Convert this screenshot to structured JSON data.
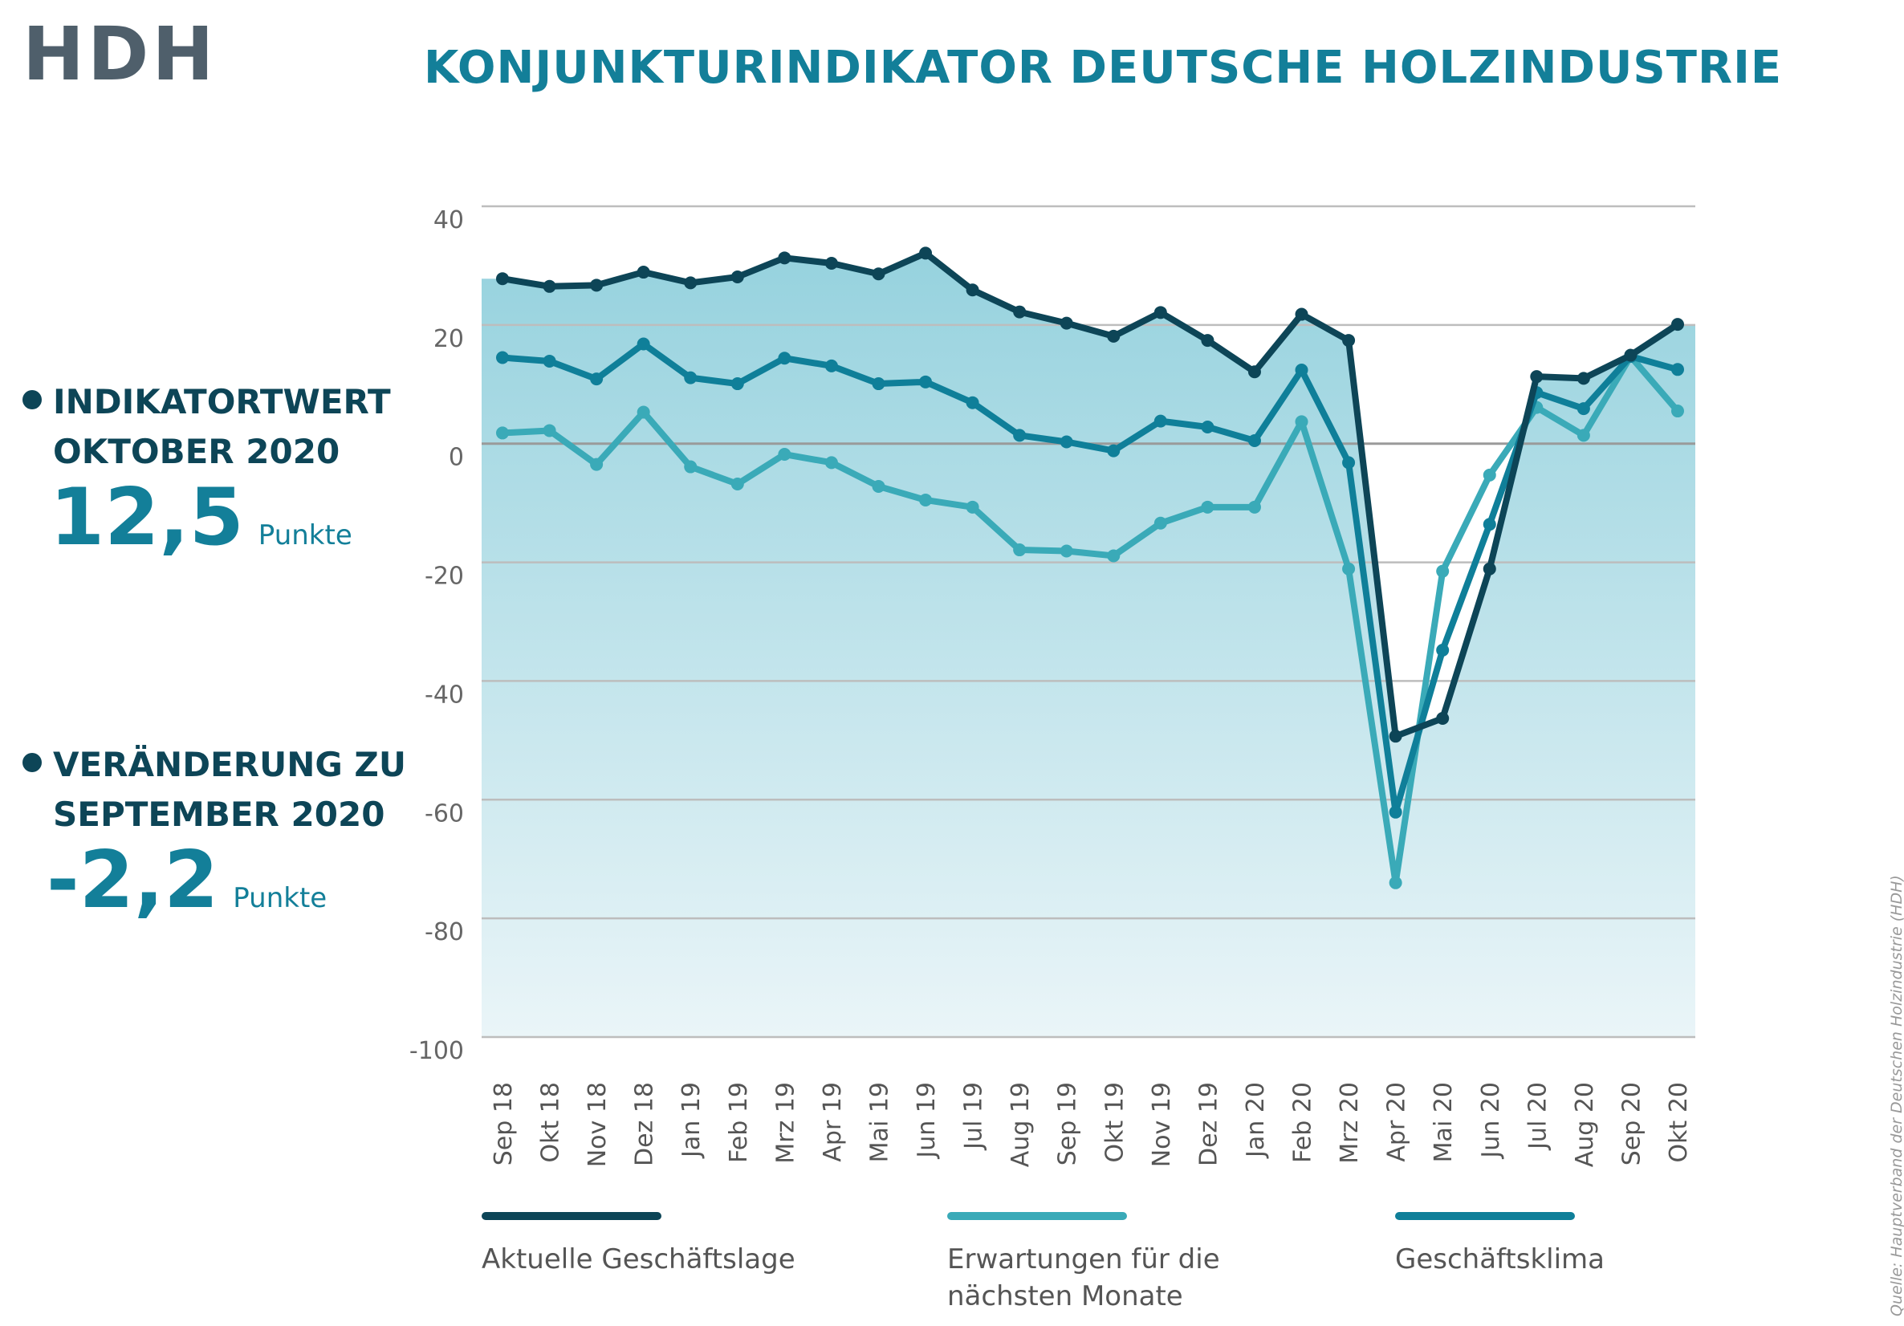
{
  "logo": "HDH",
  "title": "KONJUNKTURINDIKATOR DEUTSCHE HOLZINDUSTRIE",
  "kpis": [
    {
      "label_line1": "INDIKATORTWERT",
      "label_line2": "OKTOBER 2020",
      "value": "12,5",
      "unit": "Punkte"
    },
    {
      "label_line1": "VERÄNDERUNG ZU",
      "label_line2": "SEPTEMBER 2020",
      "value": "-2,2",
      "unit": "Punkte"
    }
  ],
  "source": "Quelle: Hauptverband der Deutschen Holzindustrie (HDH)",
  "colors": {
    "aktuelle": "#0d4557",
    "erwartungen": "#3aaab8",
    "klima": "#0f7f99",
    "grid": "#bdbdbd",
    "area_top": "#96d2de",
    "area_bottom": "#eaf5f8"
  },
  "chart_data": {
    "type": "line",
    "categories": [
      "Sep 18",
      "Okt 18",
      "Nov 18",
      "Dez 18",
      "Jan 19",
      "Feb 19",
      "Mrz 19",
      "Apr 19",
      "Mai 19",
      "Jun 19",
      "Jul 19",
      "Aug 19",
      "Sep 19",
      "Okt 19",
      "Nov 19",
      "Dez 19",
      "Jan 20",
      "Feb 20",
      "Mrz 20",
      "Apr 20",
      "Mai 20",
      "Jun 20",
      "Jul 20",
      "Aug 20",
      "Sep 20",
      "Okt 20"
    ],
    "ylim": [
      -100,
      40
    ],
    "yticks": [
      40,
      20,
      0,
      -20,
      -40,
      -60,
      -80,
      -100
    ],
    "ytick_labels": [
      "40",
      "20",
      "0",
      "-20",
      "-40",
      "-60",
      "-80",
      "-100"
    ],
    "grid": true,
    "area_fill": true,
    "legend_position": "bottom",
    "series": [
      {
        "name": "Aktuelle Geschäftslage",
        "values": [
          27.8,
          26.5,
          26.7,
          28.9,
          27.1,
          28.1,
          31.3,
          30.4,
          28.6,
          32.1,
          25.9,
          22.2,
          20.3,
          18.1,
          22.1,
          17.4,
          12.1,
          21.8,
          17.4,
          -49.3,
          -46.3,
          -21.1,
          11.3,
          11.0,
          14.9,
          20.1
        ]
      },
      {
        "name": "Erwartungen für die nächsten Monate",
        "values": [
          1.8,
          2.2,
          -3.5,
          5.3,
          -3.9,
          -6.8,
          -1.8,
          -3.2,
          -7.2,
          -9.5,
          -10.7,
          -17.9,
          -18.1,
          -18.9,
          -13.4,
          -10.7,
          -10.7,
          3.7,
          -21.1,
          -74.0,
          -21.5,
          -5.3,
          6.1,
          1.4,
          14.7,
          5.5
        ]
      },
      {
        "name": "Geschäftsklima",
        "values": [
          14.5,
          13.9,
          10.9,
          16.8,
          11.1,
          10.1,
          14.4,
          13.1,
          10.1,
          10.4,
          6.9,
          1.4,
          0.3,
          -1.2,
          3.8,
          2.8,
          0.5,
          12.4,
          -3.2,
          -62.1,
          -34.8,
          -13.6,
          8.6,
          5.9,
          14.7,
          12.5
        ]
      }
    ]
  }
}
